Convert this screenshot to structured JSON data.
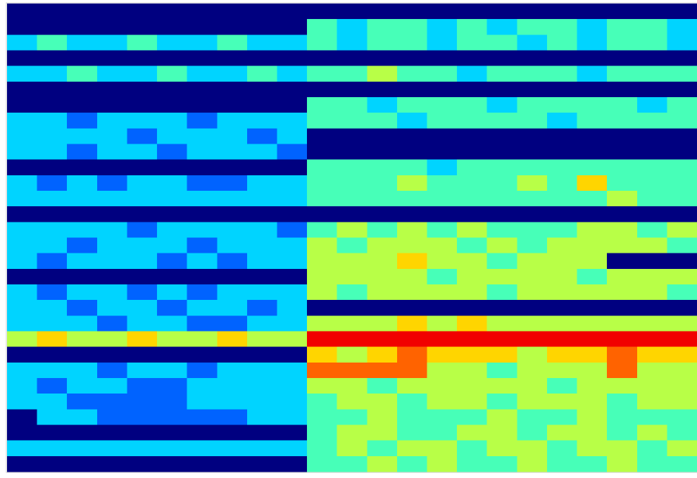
{
  "chart_data": {
    "type": "heatmap",
    "colormap": "jet",
    "zlim": [
      0,
      9
    ],
    "z": [
      [
        0,
        0,
        0,
        0,
        0,
        0,
        0,
        0,
        0,
        0,
        0,
        0,
        0,
        0,
        0,
        0,
        0,
        0,
        0,
        0,
        0,
        0,
        0
      ],
      [
        0,
        0,
        0,
        0,
        0,
        0,
        0,
        0,
        0,
        0,
        4,
        3,
        4,
        4,
        3,
        4,
        3,
        4,
        4,
        3,
        4,
        4,
        3
      ],
      [
        3,
        4,
        3,
        3,
        4,
        3,
        3,
        4,
        3,
        3,
        4,
        3,
        4,
        4,
        3,
        4,
        4,
        3,
        4,
        3,
        4,
        4,
        3
      ],
      [
        0,
        0,
        0,
        0,
        0,
        0,
        0,
        0,
        0,
        0,
        0,
        0,
        0,
        0,
        0,
        0,
        0,
        0,
        0,
        0,
        0,
        0,
        0
      ],
      [
        3,
        3,
        4,
        3,
        3,
        4,
        3,
        3,
        4,
        3,
        4,
        4,
        5,
        4,
        4,
        3,
        4,
        4,
        4,
        3,
        4,
        4,
        4
      ],
      [
        0,
        0,
        0,
        0,
        0,
        0,
        0,
        0,
        0,
        0,
        0,
        0,
        0,
        0,
        0,
        0,
        0,
        0,
        0,
        0,
        0,
        0,
        0
      ],
      [
        0,
        0,
        0,
        0,
        0,
        0,
        0,
        0,
        0,
        0,
        4,
        4,
        3,
        4,
        4,
        4,
        3,
        4,
        4,
        4,
        4,
        3,
        4
      ],
      [
        3,
        3,
        2,
        3,
        3,
        3,
        2,
        3,
        3,
        3,
        4,
        4,
        4,
        3,
        4,
        4,
        4,
        4,
        3,
        4,
        4,
        4,
        4
      ],
      [
        3,
        3,
        3,
        3,
        2,
        3,
        3,
        3,
        2,
        3,
        0,
        0,
        0,
        0,
        0,
        0,
        0,
        0,
        0,
        0,
        0,
        0,
        0
      ],
      [
        3,
        3,
        2,
        3,
        3,
        2,
        3,
        3,
        3,
        2,
        0,
        0,
        0,
        0,
        0,
        0,
        0,
        0,
        0,
        0,
        0,
        0,
        0
      ],
      [
        0,
        0,
        0,
        0,
        0,
        0,
        0,
        0,
        0,
        0,
        4,
        4,
        4,
        4,
        3,
        4,
        4,
        4,
        4,
        4,
        4,
        4,
        4
      ],
      [
        3,
        2,
        3,
        2,
        3,
        3,
        2,
        2,
        3,
        3,
        4,
        4,
        4,
        5,
        4,
        4,
        4,
        5,
        4,
        6,
        4,
        4,
        4
      ],
      [
        3,
        3,
        3,
        3,
        3,
        3,
        3,
        3,
        3,
        3,
        4,
        4,
        4,
        4,
        4,
        4,
        4,
        4,
        4,
        4,
        5,
        4,
        4
      ],
      [
        0,
        0,
        0,
        0,
        0,
        0,
        0,
        0,
        0,
        0,
        0,
        0,
        0,
        0,
        0,
        0,
        0,
        0,
        0,
        0,
        0,
        0,
        0
      ],
      [
        3,
        3,
        3,
        3,
        2,
        3,
        3,
        3,
        3,
        2,
        4,
        5,
        4,
        5,
        4,
        5,
        4,
        4,
        4,
        5,
        5,
        4,
        5
      ],
      [
        3,
        3,
        2,
        3,
        3,
        3,
        2,
        3,
        3,
        3,
        5,
        4,
        5,
        5,
        5,
        4,
        5,
        4,
        5,
        5,
        5,
        5,
        4
      ],
      [
        3,
        2,
        3,
        3,
        3,
        2,
        3,
        2,
        3,
        3,
        5,
        5,
        5,
        6,
        5,
        5,
        4,
        5,
        5,
        5,
        0,
        0,
        0
      ],
      [
        0,
        0,
        0,
        0,
        0,
        0,
        0,
        0,
        0,
        0,
        5,
        5,
        5,
        5,
        4,
        5,
        5,
        5,
        5,
        4,
        5,
        5,
        5
      ],
      [
        3,
        2,
        3,
        3,
        2,
        3,
        2,
        3,
        3,
        3,
        5,
        4,
        5,
        5,
        5,
        5,
        4,
        5,
        5,
        5,
        5,
        5,
        4
      ],
      [
        3,
        3,
        2,
        3,
        3,
        2,
        3,
        3,
        2,
        3,
        0,
        0,
        0,
        0,
        0,
        0,
        0,
        0,
        0,
        0,
        0,
        0,
        0
      ],
      [
        3,
        3,
        3,
        2,
        3,
        3,
        2,
        2,
        3,
        3,
        5,
        5,
        5,
        6,
        5,
        6,
        5,
        5,
        5,
        5,
        5,
        5,
        5
      ],
      [
        5,
        6,
        5,
        5,
        6,
        5,
        5,
        6,
        5,
        5,
        8,
        8,
        8,
        8,
        8,
        8,
        8,
        8,
        8,
        8,
        8,
        8,
        8
      ],
      [
        0,
        0,
        0,
        0,
        0,
        0,
        0,
        0,
        0,
        0,
        6,
        5,
        6,
        7,
        6,
        6,
        6,
        5,
        6,
        6,
        7,
        6,
        6
      ],
      [
        3,
        3,
        3,
        2,
        3,
        3,
        2,
        3,
        3,
        3,
        7,
        7,
        7,
        7,
        5,
        5,
        4,
        5,
        5,
        5,
        7,
        5,
        5
      ],
      [
        3,
        2,
        3,
        3,
        2,
        2,
        3,
        3,
        3,
        3,
        5,
        5,
        4,
        5,
        5,
        5,
        5,
        5,
        4,
        5,
        5,
        5,
        5
      ],
      [
        3,
        3,
        2,
        2,
        2,
        2,
        3,
        3,
        3,
        3,
        4,
        5,
        5,
        4,
        5,
        5,
        4,
        5,
        5,
        5,
        4,
        5,
        5
      ],
      [
        0,
        3,
        3,
        2,
        2,
        2,
        2,
        2,
        3,
        3,
        4,
        4,
        5,
        4,
        4,
        4,
        5,
        4,
        4,
        5,
        4,
        4,
        4
      ],
      [
        0,
        0,
        0,
        0,
        0,
        0,
        0,
        0,
        0,
        0,
        4,
        5,
        5,
        4,
        4,
        5,
        5,
        4,
        5,
        5,
        4,
        5,
        4
      ],
      [
        3,
        3,
        3,
        3,
        3,
        3,
        3,
        3,
        3,
        3,
        4,
        5,
        4,
        5,
        5,
        4,
        5,
        5,
        4,
        5,
        5,
        4,
        5
      ],
      [
        0,
        0,
        0,
        0,
        0,
        0,
        0,
        0,
        0,
        0,
        4,
        4,
        5,
        4,
        5,
        4,
        4,
        5,
        4,
        4,
        5,
        4,
        4
      ]
    ]
  }
}
